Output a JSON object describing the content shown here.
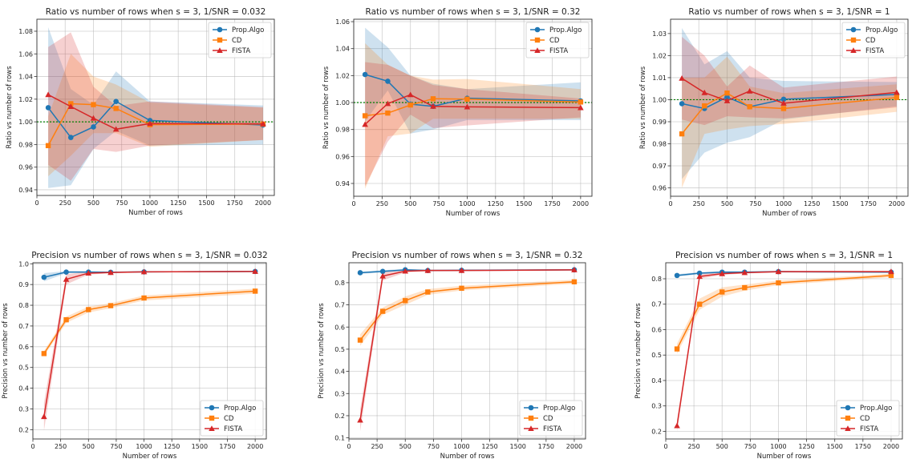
{
  "figure": {
    "series_colors": {
      "Prop.Algo": "#1f77b4",
      "CD": "#ff7f0e",
      "FISTA": "#d62728"
    },
    "reference_line_color": "#008000"
  },
  "chart_data": [
    {
      "type": "line",
      "title": "Ratio vs number of rows  when s = 3, 1/SNR = 0.032",
      "xlabel": "Number of rows",
      "ylabel": "Ratio vs number of rows",
      "xlim": [
        0,
        2100
      ],
      "ylim": [
        0.935,
        1.0906
      ],
      "xticks": [
        0,
        250,
        500,
        750,
        1000,
        1250,
        1500,
        1750,
        2000
      ],
      "yticks": [
        0.94,
        0.96,
        0.98,
        1.0,
        1.02,
        1.04,
        1.06,
        1.08
      ],
      "ytick_labels": [
        "0.94",
        "0.96",
        "0.98",
        "1.00",
        "1.02",
        "1.04",
        "1.06",
        "1.08"
      ],
      "grid": true,
      "legend": "top-right",
      "reference_line": 1.0,
      "x": [
        100,
        300,
        500,
        700,
        1000,
        2000
      ],
      "series": [
        {
          "name": "Prop.Algo",
          "marker": "circle",
          "values": [
            1.0125,
            0.9862,
            0.9955,
            1.018,
            1.0012,
            0.9972
          ],
          "lower": [
            0.9415,
            0.944,
            0.976,
            0.992,
            0.979,
            0.98
          ],
          "upper": [
            1.0835,
            1.029,
            1.015,
            1.0445,
            1.018,
            1.0145
          ]
        },
        {
          "name": "CD",
          "marker": "square",
          "values": [
            0.979,
            1.016,
            1.0152,
            1.0118,
            0.9975,
            0.998
          ],
          "lower": [
            0.952,
            0.97,
            0.99,
            0.99,
            0.978,
            0.984
          ],
          "upper": [
            1.005,
            1.06,
            1.04,
            1.033,
            1.017,
            1.0125
          ]
        },
        {
          "name": "FISTA",
          "marker": "triangle",
          "values": [
            1.024,
            1.0135,
            1.0032,
            0.9935,
            0.9985,
            0.9982
          ],
          "lower": [
            0.962,
            0.948,
            0.976,
            0.9735,
            0.979,
            0.984
          ],
          "upper": [
            1.066,
            1.079,
            1.031,
            1.014,
            1.018,
            1.013
          ]
        }
      ]
    },
    {
      "type": "line",
      "title": "Ratio vs number of rows  when s = 3, 1/SNR = 0.32",
      "xlabel": "Number of rows",
      "ylabel": "Ratio vs number of rows",
      "xlim": [
        0,
        2100
      ],
      "ylim": [
        0.9305,
        1.0618
      ],
      "xticks": [
        0,
        250,
        500,
        750,
        1000,
        1250,
        1500,
        1750,
        2000
      ],
      "yticks": [
        0.94,
        0.96,
        0.98,
        1.0,
        1.02,
        1.04,
        1.06
      ],
      "ytick_labels": [
        "0.94",
        "0.96",
        "0.98",
        "1.00",
        "1.02",
        "1.04",
        "1.06"
      ],
      "grid": true,
      "legend": "top-right",
      "reference_line": 1.0,
      "x": [
        100,
        300,
        500,
        700,
        1000,
        2000
      ],
      "series": [
        {
          "name": "Prop.Algo",
          "marker": "circle",
          "values": [
            1.0208,
            1.0158,
            0.9988,
            0.9972,
            1.0032,
            1.0012
          ],
          "lower": [
            0.986,
            1.009,
            0.977,
            0.98,
            0.987,
            0.987
          ],
          "upper": [
            1.0555,
            1.041,
            1.02,
            1.014,
            1.01,
            1.015
          ]
        },
        {
          "name": "CD",
          "marker": "square",
          "values": [
            0.9902,
            0.9922,
            0.9982,
            1.0028,
            1.0025,
            1.0004
          ],
          "lower": [
            0.936,
            0.975,
            0.977,
            0.988,
            0.988,
            0.988
          ],
          "upper": [
            1.044,
            1.028,
            1.02,
            1.017,
            1.0175,
            1.01
          ]
        },
        {
          "name": "FISTA",
          "marker": "triangle",
          "values": [
            0.9838,
            0.9992,
            1.0058,
            0.9972,
            0.9968,
            0.9962
          ],
          "lower": [
            0.938,
            0.971,
            0.991,
            0.981,
            0.983,
            0.989
          ],
          "upper": [
            1.03,
            1.028,
            1.02,
            1.013,
            1.01,
            1.003
          ]
        }
      ]
    },
    {
      "type": "line",
      "title": "Ratio vs number of rows  when s = 3, 1/SNR = 1",
      "xlabel": "Number of rows",
      "ylabel": "Ratio vs number of rows",
      "xlim": [
        0,
        2100
      ],
      "ylim": [
        0.9562,
        1.0365
      ],
      "xticks": [
        0,
        250,
        500,
        750,
        1000,
        1250,
        1500,
        1750,
        2000
      ],
      "yticks": [
        0.96,
        0.97,
        0.98,
        0.99,
        1.0,
        1.01,
        1.02,
        1.03
      ],
      "ytick_labels": [
        "0.96",
        "0.97",
        "0.98",
        "0.99",
        "1.00",
        "1.01",
        "1.02",
        "1.03"
      ],
      "grid": true,
      "legend": "top-right",
      "reference_line": 1.0,
      "x": [
        100,
        300,
        500,
        700,
        1000,
        2000
      ],
      "series": [
        {
          "name": "Prop.Algo",
          "marker": "circle",
          "values": [
            0.9982,
            0.996,
            1.0012,
            0.9968,
            1.0002,
            1.0024
          ],
          "lower": [
            0.964,
            0.976,
            0.9805,
            0.983,
            0.991,
            0.997
          ],
          "upper": [
            1.0325,
            1.016,
            1.022,
            1.01,
            1.0085,
            1.008
          ]
        },
        {
          "name": "CD",
          "marker": "square",
          "values": [
            0.9845,
            0.9972,
            1.003,
            0.9968,
            0.996,
            1.001
          ],
          "lower": [
            0.96,
            0.9845,
            0.9865,
            0.988,
            0.989,
            0.9945
          ],
          "upper": [
            1.01,
            1.01,
            1.0195,
            1.006,
            1.003,
            1.007
          ]
        },
        {
          "name": "FISTA",
          "marker": "triangle",
          "values": [
            1.0097,
            1.0032,
            0.9995,
            1.0039,
            0.9984,
            1.0033
          ],
          "lower": [
            0.991,
            0.9885,
            0.9925,
            0.992,
            0.9915,
            0.9965
          ],
          "upper": [
            1.0285,
            1.02,
            1.006,
            1.0155,
            1.0055,
            1.0105
          ]
        }
      ]
    },
    {
      "type": "line",
      "title": "Precision vs number of rows  when s = 3, 1/SNR = 0.032",
      "xlabel": "Number of rows",
      "ylabel": "Precision vs number of rows",
      "xlim": [
        0,
        2100
      ],
      "ylim": [
        0.155,
        1.005
      ],
      "xticks": [
        0,
        250,
        500,
        750,
        1000,
        1250,
        1500,
        1750,
        2000
      ],
      "yticks": [
        0.2,
        0.3,
        0.4,
        0.5,
        0.6,
        0.7,
        0.8,
        0.9,
        1.0
      ],
      "ytick_labels": [
        "0.2",
        "0.3",
        "0.4",
        "0.5",
        "0.6",
        "0.7",
        "0.8",
        "0.9",
        "1.0"
      ],
      "grid": true,
      "legend": "bottom-right",
      "x": [
        100,
        300,
        500,
        700,
        1000,
        2000
      ],
      "series": [
        {
          "name": "Prop.Algo",
          "marker": "circle",
          "values": [
            0.935,
            0.96,
            0.96,
            0.959,
            0.961,
            0.963
          ],
          "lower": [
            0.915,
            0.955,
            0.956,
            0.956,
            0.958,
            0.96
          ],
          "upper": [
            0.955,
            0.965,
            0.964,
            0.962,
            0.964,
            0.966
          ]
        },
        {
          "name": "CD",
          "marker": "square",
          "values": [
            0.567,
            0.73,
            0.779,
            0.798,
            0.835,
            0.868
          ],
          "lower": [
            0.555,
            0.715,
            0.765,
            0.786,
            0.823,
            0.856
          ],
          "upper": [
            0.58,
            0.745,
            0.793,
            0.81,
            0.847,
            0.88
          ]
        },
        {
          "name": "FISTA",
          "marker": "triangle",
          "values": [
            0.263,
            0.925,
            0.955,
            0.958,
            0.961,
            0.963
          ],
          "lower": [
            0.195,
            0.9,
            0.948,
            0.954,
            0.958,
            0.96
          ],
          "upper": [
            0.33,
            0.95,
            0.962,
            0.962,
            0.964,
            0.966
          ]
        }
      ]
    },
    {
      "type": "line",
      "title": "Precision vs number of rows  when s = 3, 1/SNR = 0.32",
      "xlabel": "Number of rows",
      "ylabel": "Precision vs number of rows",
      "xlim": [
        0,
        2100
      ],
      "ylim": [
        0.095,
        0.89
      ],
      "xticks": [
        0,
        250,
        500,
        750,
        1000,
        1250,
        1500,
        1750,
        2000
      ],
      "yticks": [
        0.1,
        0.2,
        0.3,
        0.4,
        0.5,
        0.6,
        0.7,
        0.8
      ],
      "ytick_labels": [
        "0.1",
        "0.2",
        "0.3",
        "0.4",
        "0.5",
        "0.6",
        "0.7",
        "0.8"
      ],
      "grid": true,
      "legend": "bottom-right",
      "x": [
        100,
        300,
        500,
        700,
        1000,
        2000
      ],
      "series": [
        {
          "name": "Prop.Algo",
          "marker": "circle",
          "values": [
            0.845,
            0.851,
            0.858,
            0.855,
            0.856,
            0.858
          ],
          "lower": [
            0.84,
            0.846,
            0.854,
            0.852,
            0.853,
            0.855
          ],
          "upper": [
            0.85,
            0.856,
            0.862,
            0.858,
            0.859,
            0.861
          ]
        },
        {
          "name": "CD",
          "marker": "square",
          "values": [
            0.541,
            0.671,
            0.719,
            0.758,
            0.775,
            0.804
          ],
          "lower": [
            0.515,
            0.655,
            0.7,
            0.745,
            0.765,
            0.795
          ],
          "upper": [
            0.567,
            0.688,
            0.738,
            0.771,
            0.786,
            0.813
          ]
        },
        {
          "name": "FISTA",
          "marker": "triangle",
          "values": [
            0.18,
            0.83,
            0.852,
            0.855,
            0.855,
            0.858
          ],
          "lower": [
            0.13,
            0.81,
            0.846,
            0.851,
            0.852,
            0.855
          ],
          "upper": [
            0.23,
            0.85,
            0.858,
            0.859,
            0.858,
            0.861
          ]
        }
      ]
    },
    {
      "type": "line",
      "title": "Precision vs number of rows  when s = 3, 1/SNR = 1",
      "xlabel": "Number of rows",
      "ylabel": "Precision vs number of rows",
      "xlim": [
        0,
        2100
      ],
      "ylim": [
        0.17,
        0.863
      ],
      "xticks": [
        0,
        250,
        500,
        750,
        1000,
        1250,
        1500,
        1750,
        2000
      ],
      "yticks": [
        0.2,
        0.3,
        0.4,
        0.5,
        0.6,
        0.7,
        0.8
      ],
      "ytick_labels": [
        "0.2",
        "0.3",
        "0.4",
        "0.5",
        "0.6",
        "0.7",
        "0.8"
      ],
      "grid": true,
      "legend": "bottom-right",
      "x": [
        100,
        300,
        500,
        700,
        1000,
        2000
      ],
      "series": [
        {
          "name": "Prop.Algo",
          "marker": "circle",
          "values": [
            0.813,
            0.822,
            0.826,
            0.826,
            0.828,
            0.826
          ],
          "lower": [
            0.808,
            0.818,
            0.822,
            0.822,
            0.825,
            0.823
          ],
          "upper": [
            0.818,
            0.826,
            0.83,
            0.83,
            0.831,
            0.829
          ]
        },
        {
          "name": "CD",
          "marker": "square",
          "values": [
            0.524,
            0.7,
            0.748,
            0.765,
            0.784,
            0.813
          ],
          "lower": [
            0.505,
            0.678,
            0.73,
            0.753,
            0.775,
            0.806
          ],
          "upper": [
            0.545,
            0.722,
            0.766,
            0.777,
            0.793,
            0.82
          ]
        },
        {
          "name": "FISTA",
          "marker": "triangle",
          "values": [
            0.222,
            0.809,
            0.82,
            0.824,
            0.828,
            0.828
          ],
          "lower": [
            0.2,
            0.8,
            0.815,
            0.821,
            0.825,
            0.825
          ],
          "upper": [
            0.245,
            0.818,
            0.825,
            0.827,
            0.831,
            0.831
          ]
        }
      ]
    }
  ]
}
